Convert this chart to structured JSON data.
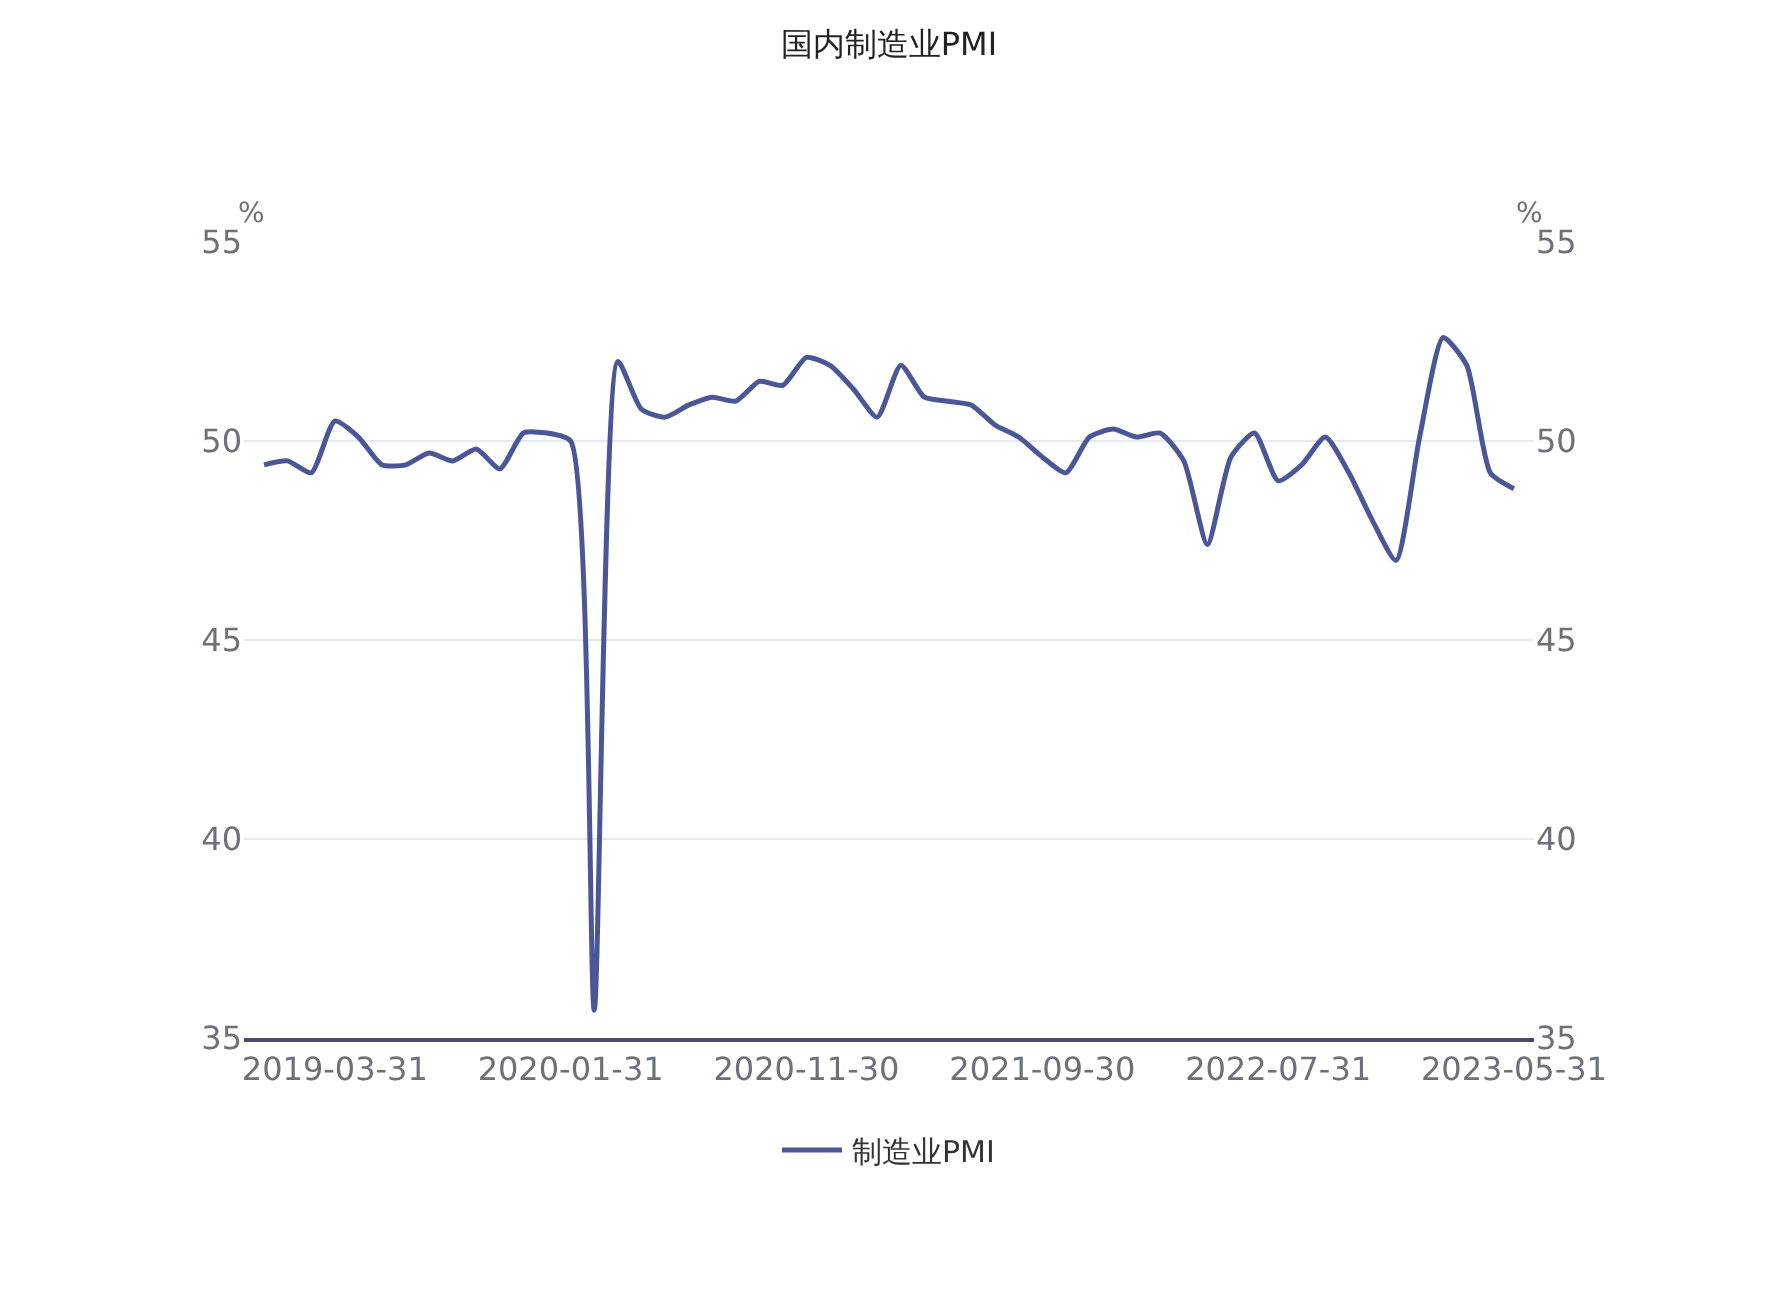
{
  "chart_data": {
    "type": "line",
    "title": "国内制造业PMI",
    "ylabel": "%",
    "y2label": "%",
    "categories": [
      null,
      null,
      null,
      "2019-03-31",
      null,
      null,
      null,
      null,
      null,
      null,
      null,
      null,
      null,
      "2020-01-31",
      null,
      null,
      null,
      null,
      null,
      null,
      null,
      null,
      null,
      "2020-11-30",
      null,
      null,
      null,
      null,
      null,
      null,
      null,
      null,
      null,
      "2021-09-30",
      null,
      null,
      null,
      null,
      null,
      null,
      null,
      null,
      null,
      "2022-07-31",
      null,
      null,
      null,
      null,
      null,
      null,
      null,
      null,
      null,
      "2023-05-31"
    ],
    "series": [
      {
        "name": "制造业PMI",
        "color": "#4b5699",
        "values": [
          49.4,
          49.5,
          49.2,
          50.5,
          50.1,
          49.4,
          49.4,
          49.7,
          49.5,
          49.8,
          49.3,
          50.2,
          50.2,
          50.0,
          35.7,
          52.0,
          50.8,
          50.6,
          50.9,
          51.1,
          51.0,
          51.5,
          51.4,
          52.1,
          51.9,
          51.3,
          50.6,
          51.9,
          51.1,
          51.0,
          50.9,
          50.4,
          50.1,
          49.6,
          49.2,
          50.1,
          50.3,
          50.1,
          50.2,
          49.5,
          47.4,
          49.6,
          50.2,
          49.0,
          49.4,
          50.1,
          49.2,
          48.0,
          47.0,
          50.1,
          52.6,
          51.9,
          49.2,
          48.8
        ]
      }
    ],
    "ylim": [
      35,
      55
    ],
    "yticks": [
      35,
      40,
      45,
      50,
      55
    ],
    "y2lim": [
      35,
      55
    ],
    "y2ticks": [
      35,
      40,
      45,
      50,
      55
    ],
    "grid": "y",
    "legend": "bottom",
    "marker": "none",
    "line_style": "solid"
  }
}
